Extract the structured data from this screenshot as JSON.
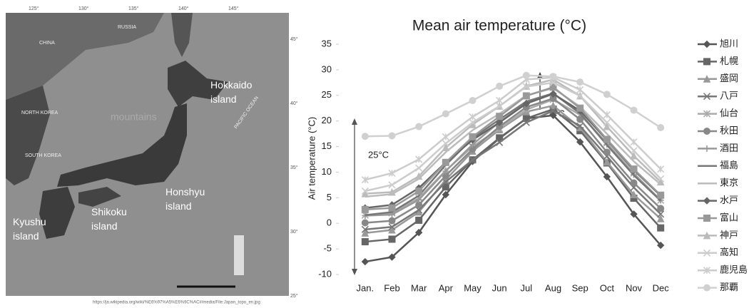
{
  "map": {
    "regions": [
      "RUSSIA",
      "CHINA",
      "NORTH KOREA",
      "SOUTH KOREA",
      "PACIFIC OCEAN"
    ],
    "labels": [
      "Hokkaido island",
      "Honshyu island",
      "Shikoku island",
      "Kyushu island",
      "mountains"
    ],
    "lon_labels": [
      "125°",
      "130°",
      "135°",
      "140°",
      "145°"
    ],
    "lat_labels": [
      "45°",
      "40°",
      "35°",
      "30°",
      "25°"
    ],
    "source": "https://ja.wikipedia.org/wiki/%E6%97%A5%E6%9C%AC#/media/File:Japan_topo_en.jpg"
  },
  "chart_data": {
    "type": "line",
    "title": "Mean air temperature (°C)",
    "y_label": "Air temperature (°C)",
    "annotations": [
      "25°C",
      "8°C"
    ],
    "categories": [
      "Jan.",
      "Feb",
      "Mar",
      "Apr",
      "May",
      "Jun",
      "Jul",
      "Aug",
      "Sep",
      "Oct",
      "Nov",
      "Dec"
    ],
    "ylim": [
      -10,
      35
    ],
    "yticks": [
      -10,
      -5,
      0,
      5,
      10,
      15,
      20,
      25,
      30,
      35
    ],
    "legend": "right",
    "series": [
      {
        "name": "旭川",
        "color": "#555555",
        "marker": "diamond",
        "values": [
          -7.5,
          -6.6,
          -1.8,
          5.6,
          12.1,
          16.6,
          20.5,
          21.1,
          15.9,
          9.1,
          1.8,
          -4.3
        ]
      },
      {
        "name": "札幌",
        "color": "#666666",
        "marker": "square",
        "values": [
          -3.6,
          -3.1,
          0.6,
          7.1,
          12.4,
          16.7,
          20.5,
          22.3,
          18.1,
          11.8,
          4.9,
          -0.9
        ]
      },
      {
        "name": "盛岡",
        "color": "#999999",
        "marker": "triangle",
        "values": [
          -1.9,
          -1.3,
          2.2,
          8.5,
          14.1,
          18.3,
          21.8,
          23.0,
          18.7,
          12.0,
          5.6,
          0.9
        ]
      },
      {
        "name": "八戸",
        "color": "#777777",
        "marker": "x",
        "values": [
          -1.2,
          -0.7,
          2.6,
          8.1,
          12.4,
          15.8,
          19.7,
          22.0,
          19.0,
          13.1,
          7.0,
          1.8
        ]
      },
      {
        "name": "仙台",
        "color": "#aaaaaa",
        "marker": "star",
        "values": [
          1.6,
          2.0,
          4.9,
          10.3,
          15.0,
          18.5,
          22.2,
          24.2,
          21.2,
          15.7,
          9.8,
          4.5
        ]
      },
      {
        "name": "秋田",
        "color": "#888888",
        "marker": "circle",
        "values": [
          0.1,
          0.5,
          3.6,
          9.3,
          14.5,
          18.9,
          22.7,
          24.4,
          20.3,
          13.9,
          7.9,
          2.9
        ]
      },
      {
        "name": "酒田",
        "color": "#999999",
        "marker": "plus",
        "values": [
          1.5,
          1.7,
          4.6,
          10.2,
          15.4,
          19.8,
          23.5,
          25.4,
          21.5,
          15.4,
          9.5,
          4.5
        ]
      },
      {
        "name": "福島",
        "color": "#777777",
        "marker": "none",
        "values": [
          1.6,
          2.2,
          5.4,
          11.4,
          16.6,
          20.3,
          23.8,
          25.4,
          21.5,
          15.3,
          9.4,
          4.4
        ]
      },
      {
        "name": "東京",
        "color": "#bbbbbb",
        "marker": "none",
        "values": [
          5.2,
          5.7,
          8.7,
          13.9,
          18.2,
          21.4,
          25.0,
          26.4,
          22.8,
          17.5,
          12.1,
          7.6
        ]
      },
      {
        "name": "水戸",
        "color": "#666666",
        "marker": "diamond",
        "values": [
          3.0,
          3.6,
          6.9,
          11.9,
          16.3,
          19.7,
          23.4,
          25.3,
          22.0,
          16.3,
          10.4,
          5.4
        ]
      },
      {
        "name": "富山",
        "color": "#999999",
        "marker": "square",
        "values": [
          2.7,
          3.0,
          6.3,
          11.9,
          16.9,
          20.9,
          24.9,
          26.6,
          22.5,
          16.4,
          10.6,
          5.5
        ]
      },
      {
        "name": "神戸",
        "color": "#bbbbbb",
        "marker": "triangle",
        "values": [
          5.8,
          6.1,
          9.2,
          14.8,
          19.3,
          22.9,
          26.8,
          28.1,
          24.9,
          18.9,
          13.2,
          8.1
        ]
      },
      {
        "name": "高知",
        "color": "#cccccc",
        "marker": "x",
        "values": [
          6.3,
          7.5,
          10.8,
          15.6,
          19.7,
          22.9,
          26.7,
          27.5,
          24.9,
          19.7,
          14.2,
          8.7
        ]
      },
      {
        "name": "鹿児島",
        "color": "#cccccc",
        "marker": "star",
        "values": [
          8.5,
          9.8,
          12.5,
          16.9,
          20.8,
          24.0,
          28.1,
          28.5,
          26.1,
          21.2,
          15.9,
          10.6
        ]
      },
      {
        "name": "那覇",
        "color": "#d0d0d0",
        "marker": "circle",
        "values": [
          17.0,
          17.1,
          18.9,
          21.4,
          24.0,
          26.8,
          28.9,
          28.7,
          27.6,
          25.2,
          22.1,
          18.7
        ]
      }
    ]
  }
}
